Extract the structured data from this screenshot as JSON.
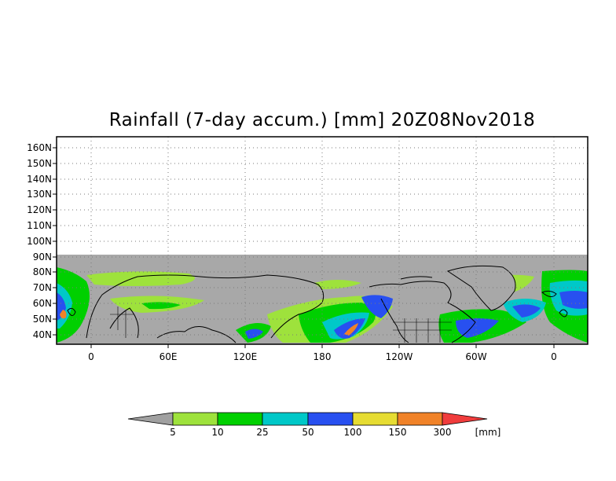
{
  "title": "Rainfall (7-day accum.) [mm] 20Z08Nov2018",
  "lat_labels": [
    "160N",
    "150N",
    "140N",
    "130N",
    "120N",
    "110N",
    "100N",
    "90N",
    "80N",
    "70N",
    "60N",
    "50N",
    "40N"
  ],
  "lon_labels": [
    "0",
    "60E",
    "120E",
    "180",
    "120W",
    "60W",
    "0"
  ],
  "colorbar": {
    "unit": "[mm]",
    "ticks": [
      "5",
      "10",
      "25",
      "50",
      "100",
      "150",
      "300"
    ],
    "colors": [
      "#a0a0a0",
      "#9ee23c",
      "#00d000",
      "#00c8c8",
      "#2850f0",
      "#e6dc32",
      "#f08228",
      "#f03c3c"
    ]
  },
  "colors": {
    "ocean_no_data": "#a8a8a8",
    "light_rain": "#9ee23c",
    "green": "#00d000",
    "cyan": "#00c8c8",
    "blue": "#2850f0",
    "yellow": "#e6dc32",
    "orange": "#f08228"
  }
}
